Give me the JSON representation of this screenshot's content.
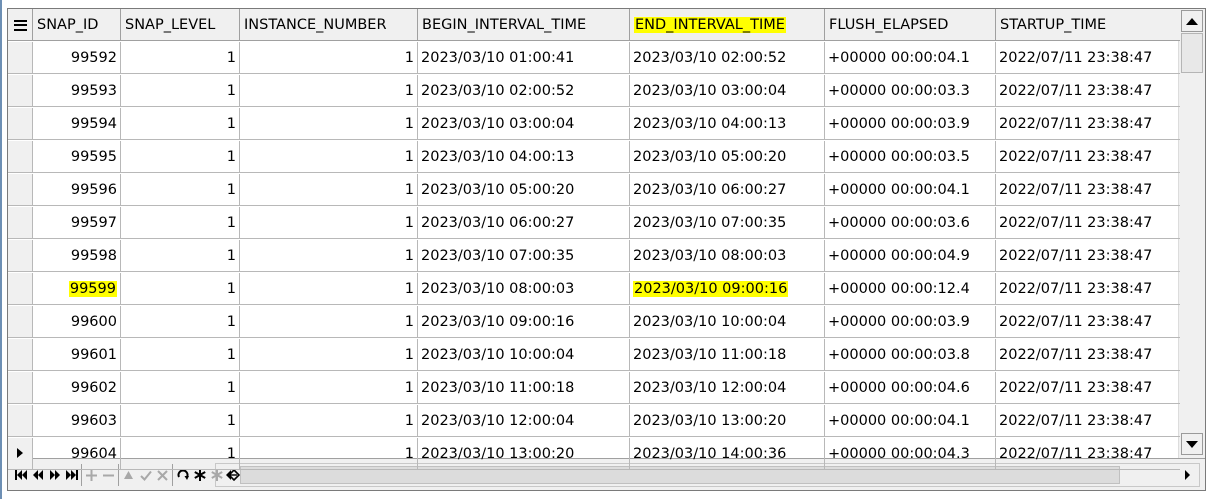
{
  "columns": [
    "SNAP_ID",
    "SNAP_LEVEL",
    "INSTANCE_NUMBER",
    "BEGIN_INTERVAL_TIME",
    "END_INTERVAL_TIME",
    "FLUSH_ELAPSED",
    "STARTUP_TIME"
  ],
  "highlight_color": "#ffff00",
  "highlighted_header": "END_INTERVAL_TIME",
  "rows": [
    [
      "99592",
      "1",
      "1",
      "2023/03/10 01:00:41",
      "2023/03/10 02:00:52",
      "+00000 00:00:04.1",
      "2022/07/11 23:38:47"
    ],
    [
      "99593",
      "1",
      "1",
      "2023/03/10 02:00:52",
      "2023/03/10 03:00:04",
      "+00000 00:00:03.3",
      "2022/07/11 23:38:47"
    ],
    [
      "99594",
      "1",
      "1",
      "2023/03/10 03:00:04",
      "2023/03/10 04:00:13",
      "+00000 00:00:03.9",
      "2022/07/11 23:38:47"
    ],
    [
      "99595",
      "1",
      "1",
      "2023/03/10 04:00:13",
      "2023/03/10 05:00:20",
      "+00000 00:00:03.5",
      "2022/07/11 23:38:47"
    ],
    [
      "99596",
      "1",
      "1",
      "2023/03/10 05:00:20",
      "2023/03/10 06:00:27",
      "+00000 00:00:04.1",
      "2022/07/11 23:38:47"
    ],
    [
      "99597",
      "1",
      "1",
      "2023/03/10 06:00:27",
      "2023/03/10 07:00:35",
      "+00000 00:00:03.6",
      "2022/07/11 23:38:47"
    ],
    [
      "99598",
      "1",
      "1",
      "2023/03/10 07:00:35",
      "2023/03/10 08:00:03",
      "+00000 00:00:04.9",
      "2022/07/11 23:38:47"
    ],
    [
      "99599",
      "1",
      "1",
      "2023/03/10 08:00:03",
      "2023/03/10 09:00:16",
      "+00000 00:00:12.4",
      "2022/07/11 23:38:47"
    ],
    [
      "99600",
      "1",
      "1",
      "2023/03/10 09:00:16",
      "2023/03/10 10:00:04",
      "+00000 00:00:03.9",
      "2022/07/11 23:38:47"
    ],
    [
      "99601",
      "1",
      "1",
      "2023/03/10 10:00:04",
      "2023/03/10 11:00:18",
      "+00000 00:00:03.8",
      "2022/07/11 23:38:47"
    ],
    [
      "99602",
      "1",
      "1",
      "2023/03/10 11:00:18",
      "2023/03/10 12:00:04",
      "+00000 00:00:04.6",
      "2022/07/11 23:38:47"
    ],
    [
      "99603",
      "1",
      "1",
      "2023/03/10 12:00:04",
      "2023/03/10 13:00:20",
      "+00000 00:00:04.1",
      "2022/07/11 23:38:47"
    ],
    [
      "99604",
      "1",
      "1",
      "2023/03/10 13:00:20",
      "2023/03/10 14:00:36",
      "+00000 00:00:04.3",
      "2022/07/11 23:38:47"
    ]
  ],
  "highlighted_row": "99599",
  "current_row": "99604",
  "navigator_buttons": [
    {
      "name": "first-record-button",
      "glyph": "⏮",
      "enabled": true
    },
    {
      "name": "prior-page-button",
      "glyph": "◀◀",
      "enabled": true
    },
    {
      "name": "next-page-button",
      "glyph": "▶▶",
      "enabled": true
    },
    {
      "name": "last-record-button",
      "glyph": "⏭",
      "enabled": true
    },
    {
      "name": "insert-record-button",
      "glyph": "+",
      "enabled": false
    },
    {
      "name": "delete-record-button",
      "glyph": "−",
      "enabled": false
    },
    {
      "name": "edit-record-button",
      "glyph": "▲",
      "enabled": false
    },
    {
      "name": "post-edit-button",
      "glyph": "✓",
      "enabled": false
    },
    {
      "name": "cancel-edit-button",
      "glyph": "✕",
      "enabled": false
    },
    {
      "name": "refresh-button",
      "glyph": "↻",
      "enabled": true
    },
    {
      "name": "set-bookmark-button",
      "glyph": "✱",
      "enabled": true
    },
    {
      "name": "goto-bookmark-button",
      "glyph": "✱",
      "enabled": false
    },
    {
      "name": "filter-button",
      "glyph": "◇",
      "enabled": true
    }
  ]
}
